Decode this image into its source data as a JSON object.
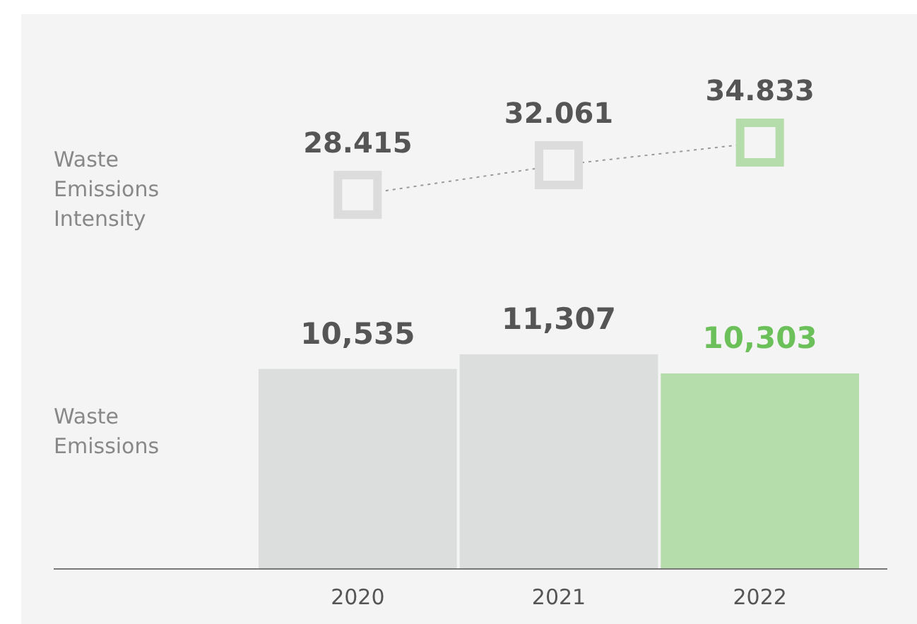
{
  "chart_data": [
    {
      "type": "line",
      "categories": [
        null,
        null,
        null
      ],
      "data_labels": true,
      "marker": "square",
      "line_style": "dotted",
      "series": [
        {
          "name": "Waste Emissions Intensity",
          "color": "#9a9a9a",
          "colors": [
            "#dcdcdc",
            "#dcdcdc",
            "#b5dcab"
          ],
          "values": [
            28.415,
            32.061,
            34.833
          ]
        }
      ]
    },
    {
      "type": "bar",
      "categories": [
        "2020",
        "2021",
        "2022"
      ],
      "series": [
        {
          "name": "Waste Emissions",
          "colors": [
            "#dcdedd",
            "#dcdedd",
            "#b5dcab"
          ],
          "values": [
            10535,
            11307,
            10303
          ],
          "value_labels": [
            "10,535",
            "11,307",
            "10,303"
          ]
        }
      ]
    }
  ]
}
